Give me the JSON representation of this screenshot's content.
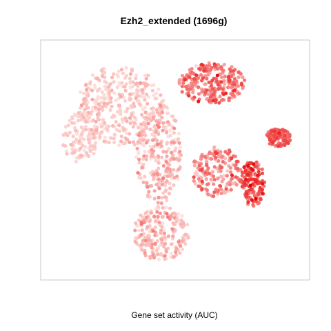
{
  "chart_data": {
    "type": "scatter",
    "title": "Ezh2_extended (1696g)",
    "xlabel": "Gene set activity (AUC)",
    "ylabel": "",
    "grid": false,
    "legend": "none",
    "color_scale": {
      "low": "#fde0dd",
      "high": "#e80000"
    },
    "auc_range": [
      0,
      1
    ],
    "clusters": [
      {
        "name": "upper-left blob",
        "cx": 0.28,
        "cy": 0.74,
        "rx": 0.17,
        "ry": 0.18,
        "n": 380,
        "auc_mean": 0.08,
        "auc_sd": 0.08
      },
      {
        "name": "left bulge",
        "cx": 0.12,
        "cy": 0.6,
        "rx": 0.07,
        "ry": 0.11,
        "n": 110,
        "auc_mean": 0.07,
        "auc_sd": 0.06
      },
      {
        "name": "central strip",
        "cx": 0.43,
        "cy": 0.53,
        "rx": 0.09,
        "ry": 0.22,
        "n": 260,
        "auc_mean": 0.14,
        "auc_sd": 0.12
      },
      {
        "name": "bottom lobe",
        "cx": 0.44,
        "cy": 0.18,
        "rx": 0.11,
        "ry": 0.12,
        "n": 230,
        "auc_mean": 0.13,
        "auc_sd": 0.12
      },
      {
        "name": "upper-right cluster",
        "cx": 0.64,
        "cy": 0.84,
        "rx": 0.13,
        "ry": 0.09,
        "n": 260,
        "auc_mean": 0.42,
        "auc_sd": 0.18
      },
      {
        "name": "middle-right cluster",
        "cx": 0.66,
        "cy": 0.45,
        "rx": 0.1,
        "ry": 0.11,
        "n": 180,
        "auc_mean": 0.33,
        "auc_sd": 0.18
      },
      {
        "name": "far-right cluster",
        "cx": 0.9,
        "cy": 0.6,
        "rx": 0.05,
        "ry": 0.04,
        "n": 120,
        "auc_mean": 0.55,
        "auc_sd": 0.1
      },
      {
        "name": "lower-right cluster",
        "cx": 0.8,
        "cy": 0.4,
        "rx": 0.05,
        "ry": 0.1,
        "n": 150,
        "auc_mean": 0.6,
        "auc_sd": 0.18
      }
    ]
  }
}
